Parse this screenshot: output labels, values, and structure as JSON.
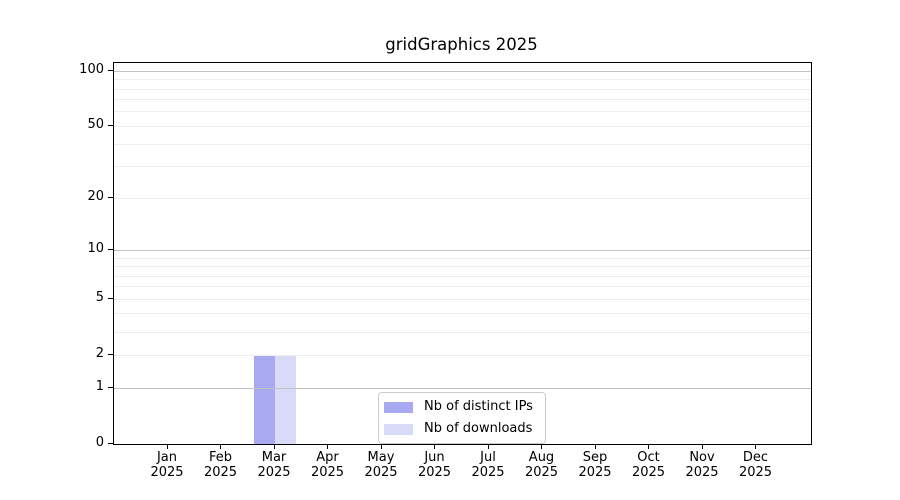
{
  "chart_data": {
    "type": "bar",
    "title": "gridGraphics 2025",
    "x_axis": {
      "categories": [
        "Jan",
        "Feb",
        "Mar",
        "Apr",
        "May",
        "Jun",
        "Jul",
        "Aug",
        "Sep",
        "Oct",
        "Nov",
        "Dec"
      ],
      "year_label": "2025"
    },
    "y_axis": {
      "scale": "log10(value+1)",
      "tick_labels": [
        0,
        1,
        2,
        5,
        10,
        20,
        50,
        100
      ],
      "grid_major_values": [
        1,
        10,
        100
      ],
      "grid_minor_values": [
        2,
        3,
        4,
        5,
        6,
        7,
        8,
        9,
        20,
        30,
        40,
        50,
        60,
        70,
        80,
        90
      ],
      "ylim": [
        0,
        110
      ]
    },
    "series": [
      {
        "name": "Nb of distinct IPs",
        "key": "distinct-ips",
        "color": "#a9a9f2",
        "values": [
          0,
          0,
          2,
          0,
          0,
          0,
          0,
          0,
          0,
          0,
          0,
          0
        ]
      },
      {
        "name": "Nb of downloads",
        "key": "downloads",
        "color": "#d9d9f8",
        "values": [
          0,
          0,
          2,
          0,
          0,
          0,
          0,
          0,
          0,
          0,
          0,
          0
        ]
      }
    ],
    "legend": {
      "position": "lower center",
      "entries": [
        "Nb of distinct IPs",
        "Nb of downloads"
      ]
    },
    "grid": true,
    "colors": {
      "grid_major": "#c3c3c3",
      "grid_minor": "#ececec",
      "axis": "#000000",
      "background": "#ffffff"
    }
  }
}
